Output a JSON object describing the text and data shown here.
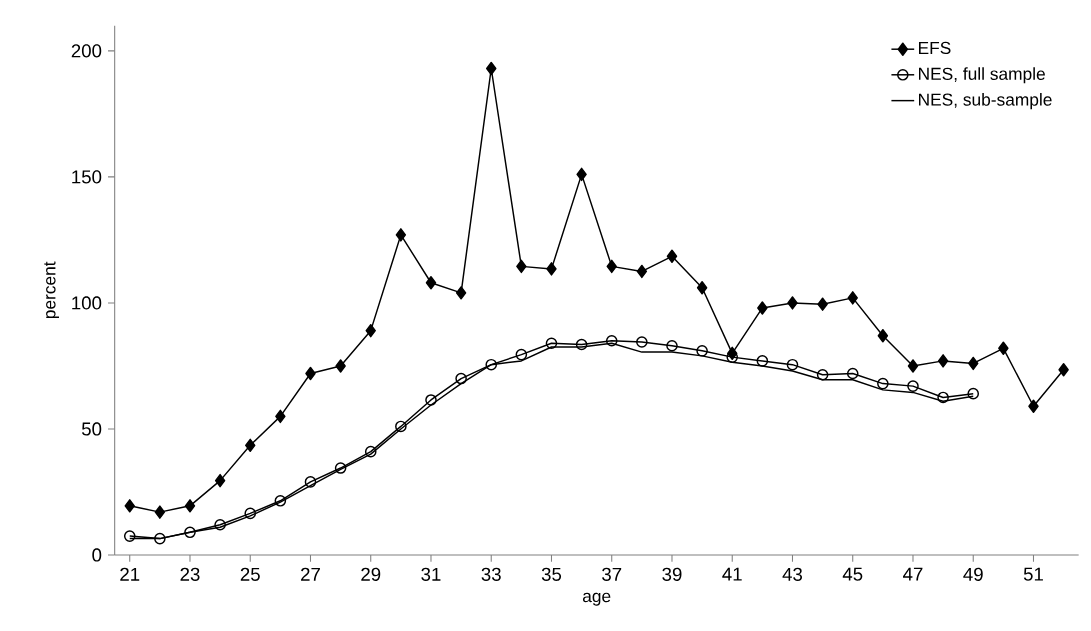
{
  "chart_data": {
    "type": "line",
    "xlabel": "age",
    "ylabel": "percent",
    "xlim": [
      20.5,
      52.5
    ],
    "xticks": [
      21,
      23,
      25,
      27,
      29,
      31,
      33,
      35,
      37,
      39,
      41,
      43,
      45,
      47,
      49,
      51
    ],
    "ylim": [
      0,
      210
    ],
    "yticks": [
      0,
      50,
      100,
      150,
      200
    ],
    "grid": false,
    "legend": "top right",
    "series": [
      {
        "name": "EFS",
        "color": "#000000",
        "marker": "diamond",
        "x": [
          21,
          22,
          23,
          24,
          25,
          26,
          27,
          28,
          29,
          30,
          31,
          32,
          33,
          34,
          35,
          36,
          37,
          38,
          39,
          40,
          41,
          42,
          43,
          44,
          45,
          46,
          47,
          48,
          49,
          50,
          51,
          52
        ],
        "values": [
          19.5,
          17,
          19.5,
          29.5,
          43.5,
          55,
          72,
          75,
          89,
          127,
          108,
          104,
          193,
          114.5,
          113.5,
          151,
          114.5,
          112.5,
          118.5,
          106,
          80,
          98,
          100,
          99.5,
          102,
          87,
          75,
          77,
          76,
          82,
          59,
          73.5
        ]
      },
      {
        "name": "NES, full sample",
        "color": "#000000",
        "marker": "circle",
        "x": [
          21,
          22,
          23,
          24,
          25,
          26,
          27,
          28,
          29,
          30,
          31,
          32,
          33,
          34,
          35,
          36,
          37,
          38,
          39,
          40,
          41,
          42,
          43,
          44,
          45,
          46,
          47,
          48,
          49
        ],
        "values": [
          7.5,
          6.5,
          9,
          12,
          16.5,
          21.5,
          29,
          34.5,
          41,
          51,
          61.5,
          70,
          75.5,
          79.5,
          84,
          83.5,
          85,
          84.5,
          83,
          81,
          78.5,
          77,
          75.5,
          71.5,
          72,
          68,
          67,
          62.5,
          64
        ]
      },
      {
        "name": "NES, sub-sample",
        "color": "#000000",
        "marker": "none",
        "x": [
          21,
          22,
          23,
          24,
          25,
          26,
          27,
          28,
          29,
          30,
          31,
          32,
          33,
          34,
          35,
          36,
          37,
          38,
          39,
          40,
          41,
          42,
          43,
          44,
          45,
          46,
          47,
          48,
          49
        ],
        "values": [
          6.5,
          6.5,
          9,
          11,
          15.5,
          21,
          27.5,
          34,
          40,
          50,
          59.5,
          68,
          75.5,
          77,
          82.5,
          82.5,
          84,
          80.5,
          80.5,
          79,
          76.5,
          75,
          73,
          69.5,
          69.5,
          65.5,
          64.5,
          61,
          63
        ]
      }
    ]
  }
}
